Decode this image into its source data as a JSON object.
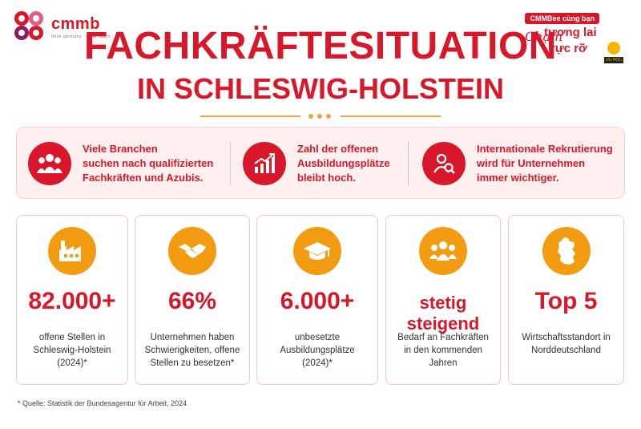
{
  "header": {
    "logo_name": "cmmb",
    "logo_tagline": "think germany · think future",
    "title_line1": "FACHKRÄFTESITUATION",
    "title_line2": "IN SCHLESWIG-HOLSTEIN"
  },
  "badge": {
    "top": "CMMBee cùng bạn",
    "script": "Chạm",
    "line1": "tương lai",
    "line2": "rực rỡ",
    "small": "DU HỌC"
  },
  "highlights": [
    {
      "icon": "people-group-icon",
      "lines": [
        "Viele Branchen",
        "suchen nach qualifizierten",
        "Fachkräften und Azubis."
      ]
    },
    {
      "icon": "growth-chart-icon",
      "lines": [
        "Zahl der offenen",
        "Ausbildungsplätze",
        "bleibt hoch."
      ]
    },
    {
      "icon": "recruiter-search-icon",
      "lines": [
        "Internationale Rekrutierung",
        "wird für Unternehmen",
        "immer wichtiger."
      ]
    }
  ],
  "cards": [
    {
      "icon": "factory-icon",
      "value": "82.000+",
      "lines": [
        "offene Stellen in",
        "Schleswig-Holstein",
        "(2024)*"
      ]
    },
    {
      "icon": "handshake-icon",
      "value": "66%",
      "lines": [
        "Unternehmen haben",
        "Schwierigkeiten, offene",
        "Stellen zu besetzen*"
      ]
    },
    {
      "icon": "graduation-cap-icon",
      "value": "6.000+",
      "lines": [
        "unbesetzte",
        "Ausbildungsplätze",
        "(2024)*"
      ]
    },
    {
      "icon": "team-icon",
      "value": "stetig steigend",
      "lines": [
        "Bedarf an Fachkräften",
        "in den kommenden",
        "Jahren"
      ]
    },
    {
      "icon": "germany-map-icon",
      "value": "Top 5",
      "lines": [
        "Wirtschaftsstandort in",
        "Norddeutschland"
      ]
    }
  ],
  "footer": {
    "source": "* Quelle: Statistik der Bundesagentur für Arbeit, 2024"
  },
  "colors": {
    "accent": "#d8182a",
    "icon_orange": "#f39c12",
    "panel_bg": "#fdf0ef"
  }
}
